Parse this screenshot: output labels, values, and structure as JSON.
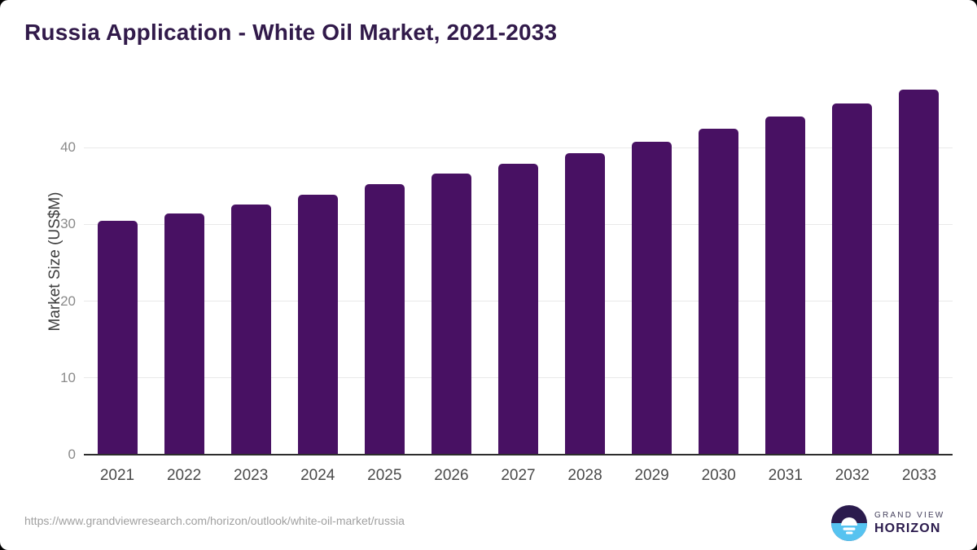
{
  "title": "Russia Application - White Oil Market, 2021-2033",
  "chart_data": {
    "type": "bar",
    "title": "Russia Application - White Oil Market, 2021-2033",
    "categories": [
      "2021",
      "2022",
      "2023",
      "2024",
      "2025",
      "2026",
      "2027",
      "2028",
      "2029",
      "2030",
      "2031",
      "2032",
      "2033"
    ],
    "values": [
      30.4,
      31.4,
      32.6,
      33.8,
      35.2,
      36.6,
      37.9,
      39.3,
      40.7,
      42.4,
      44.0,
      45.7,
      47.5
    ],
    "xlabel": "",
    "ylabel": "Market Size (US$M)",
    "yticks": [
      0,
      10,
      20,
      30,
      40
    ],
    "ylim": [
      0,
      49
    ],
    "grid": true,
    "legend": "none",
    "bar_color": "#481163"
  },
  "colors": {
    "title_text": "#311a4a",
    "bar_fill": "#481163",
    "gridline": "#e9e9e9",
    "axis_line": "#2d2d2d",
    "ytick_text": "#8a8a8a",
    "xtick_text": "#4a4a4a",
    "footer_text": "#a0a0a0",
    "logo_dark_purple": "#2b1b4d",
    "logo_light_blue": "#56c3f0",
    "card_background": "#ffffff",
    "page_background": "#000000"
  },
  "footer": {
    "source_url": "https://www.grandviewresearch.com/horizon/outlook/white-oil-market/russia"
  },
  "branding": {
    "name_top": "GRAND VIEW",
    "name_bottom": "HORIZON"
  }
}
